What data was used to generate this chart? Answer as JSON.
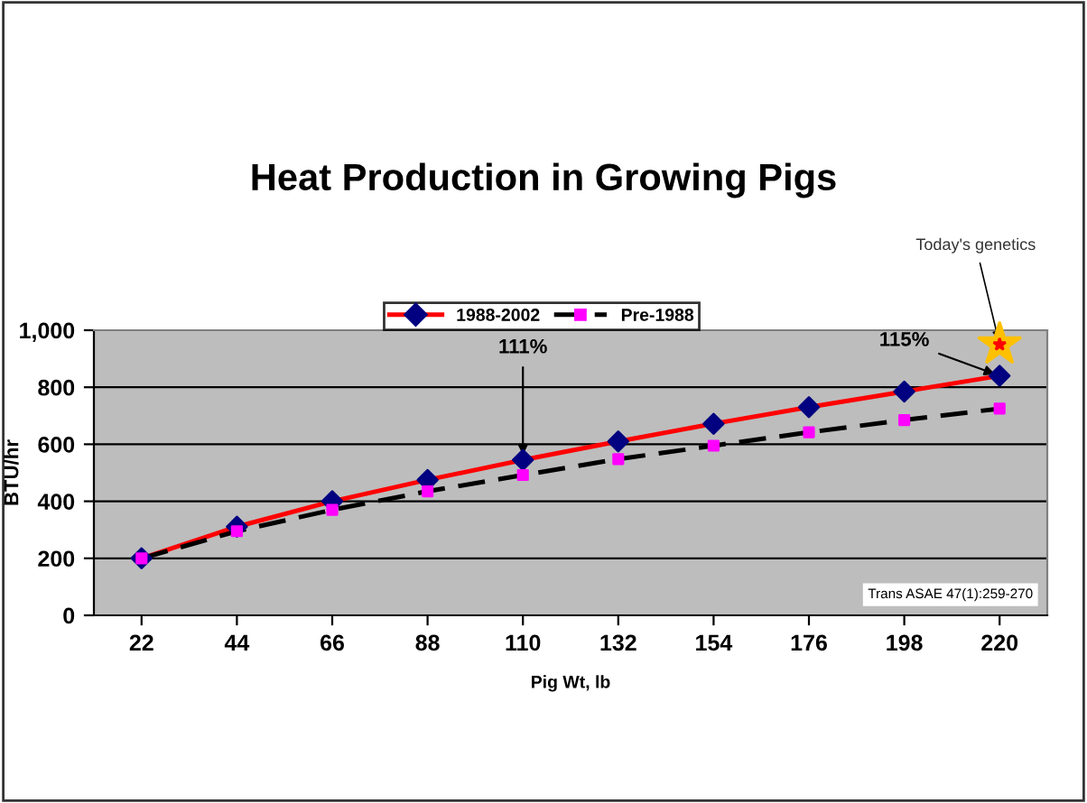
{
  "chart_data": {
    "type": "line",
    "title": "Heat Production in Growing Pigs",
    "xlabel": "Pig Wt, lb",
    "ylabel": "BTU/hr",
    "categories": [
      "22",
      "44",
      "66",
      "88",
      "110",
      "132",
      "154",
      "176",
      "198",
      "220"
    ],
    "series": [
      {
        "name": "1988-2002",
        "color": "#ff0000",
        "marker": "diamond",
        "colors": [
          "#000080",
          "#000080",
          "#000080",
          "#000080",
          "#000080",
          "#000080",
          "#000080",
          "#000080",
          "#000080",
          "#000080"
        ],
        "line_style": "solid",
        "values": [
          200,
          311,
          400,
          475,
          545,
          610,
          672,
          730,
          785,
          840
        ]
      },
      {
        "name": "Pre-1988",
        "color": "#000000",
        "marker": "square",
        "colors": [
          "#ff00ff",
          "#ff00ff",
          "#ff00ff",
          "#ff00ff",
          "#ff00ff",
          "#ff00ff",
          "#ff00ff",
          "#ff00ff",
          "#ff00ff",
          "#ff00ff"
        ],
        "line_style": "dashed",
        "values": [
          200,
          295,
          370,
          435,
          492,
          548,
          595,
          642,
          685,
          725
        ]
      }
    ],
    "ylim": [
      0,
      1000
    ],
    "yticks": [
      0,
      200,
      400,
      600,
      800,
      {
        "value": 1000,
        "label": "1,000"
      }
    ],
    "grid": "y",
    "legend": "top",
    "annotations": [
      {
        "text": "111%",
        "x": "110",
        "y": 545
      },
      {
        "text": "115%",
        "x": "220",
        "y": 840
      },
      {
        "text": "Today's genetics",
        "x": "220",
        "y": 950
      },
      "Trans ASAE 47(1):259-270"
    ]
  }
}
